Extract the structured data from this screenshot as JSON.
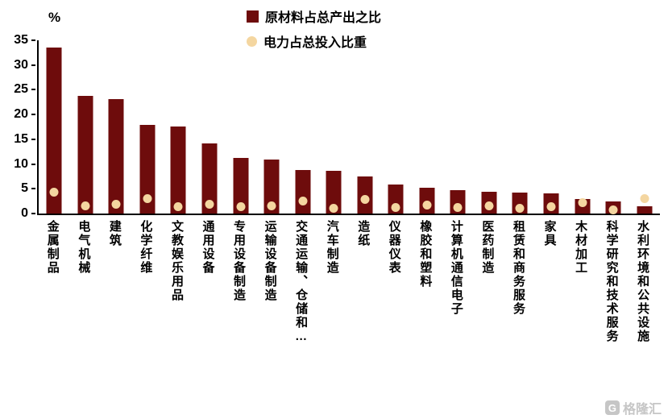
{
  "chart_data": {
    "type": "bar",
    "title": "",
    "xlabel": "",
    "ylabel": "%",
    "ylim": [
      0,
      35
    ],
    "yticks": [
      0,
      5,
      10,
      15,
      20,
      25,
      30,
      35
    ],
    "grid": false,
    "legend_position": "top-center",
    "categories": [
      "金属制品",
      "电气机械",
      "建筑",
      "化学纤维",
      "文教娱乐用品",
      "通用设备",
      "专用设备制造",
      "运输设备制造",
      "交通运输、仓储和…",
      "汽车制造",
      "造纸",
      "仪器仪表",
      "橡胶和塑料",
      "计算机通信电子",
      "医药制造",
      "租赁和商务服务",
      "家具",
      "木材加工",
      "科学研究和技术服务",
      "水利环境和公共设施"
    ],
    "series": [
      {
        "name": "原材料占总产出之比",
        "type": "bar",
        "color": "#6E0C0C",
        "values": [
          33.6,
          23.7,
          23.2,
          17.9,
          17.6,
          14.1,
          11.2,
          10.9,
          8.8,
          8.7,
          7.5,
          5.8,
          5.2,
          4.7,
          4.4,
          4.2,
          4.0,
          3.0,
          2.5,
          1.5
        ]
      },
      {
        "name": "电力占总投入比重",
        "type": "scatter",
        "color": "#F4D6A0",
        "values": [
          4.3,
          1.5,
          1.9,
          3.0,
          1.4,
          1.8,
          1.4,
          1.5,
          2.5,
          1.0,
          2.8,
          1.2,
          1.7,
          1.2,
          1.5,
          1.0,
          1.4,
          2.2,
          0.8,
          3.0
        ]
      }
    ],
    "axis_color": "#000000"
  },
  "watermark": {
    "text": "格隆汇"
  }
}
